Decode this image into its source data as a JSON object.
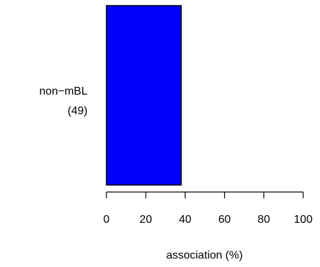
{
  "chart_data": {
    "type": "bar",
    "orientation": "horizontal",
    "categories": [
      {
        "label": "non−mBL",
        "count": "(49)"
      }
    ],
    "values": [
      38
    ],
    "xlabel": "association (%)",
    "xlim": [
      0,
      100
    ],
    "xticks": [
      "0",
      "20",
      "40",
      "60",
      "80",
      "100"
    ],
    "colors": {
      "bar_fill": "#0000ff",
      "bar_stroke": "#000000"
    },
    "grid": false,
    "legend": "none"
  }
}
